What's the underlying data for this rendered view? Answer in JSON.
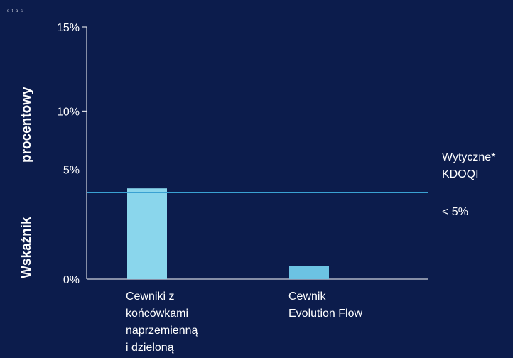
{
  "corner_text": "s t a s l",
  "chart_data": {
    "type": "bar",
    "title": "",
    "xlabel": "",
    "ylabel_top": "procentowy",
    "ylabel_bottom": "Wskaźnik",
    "ylim": [
      0,
      15
    ],
    "yticks": [
      {
        "value": 15,
        "label": "15%"
      },
      {
        "value": 10,
        "label": "10%"
      },
      {
        "value": 5,
        "label": "5%"
      },
      {
        "value": 0,
        "label": "0%"
      }
    ],
    "categories": [
      {
        "lines": [
          "Cewniki z",
          "końcówkami",
          "naprzemienną",
          "i dzieloną"
        ]
      },
      {
        "lines": [
          "Cewnik",
          "Evolution Flow"
        ]
      }
    ],
    "values": [
      5.4,
      0.8
    ],
    "bar_colors": [
      "#8ad6ec",
      "#6cc3e3"
    ],
    "reference_line": {
      "value": 5,
      "color": "#3aa1d2",
      "label_lines": [
        "Wytyczne*",
        "KDOQI"
      ],
      "sublabel": "< 5%"
    },
    "grid": false,
    "legend": "none"
  }
}
